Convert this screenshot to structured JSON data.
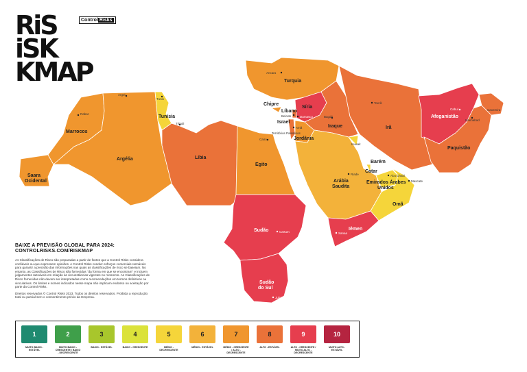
{
  "brand": {
    "logo_lines": [
      "RiS",
      "iSK",
      "KMAP"
    ],
    "badge_control": "Control",
    "badge_risks": "Risks"
  },
  "download": {
    "title_line1": "BAIXE A PREVISÃO GLOBAL PARA 2024:",
    "title_line2": "CONTROLRISKS.COM/RISKMAP"
  },
  "disclaimer": "As Classificações de Risco são preparadas a partir de fontes que a Control Risks considera confiáveis ou que expressem opiniões. A Control Risks conduz esforços comerciais razoáveis para garantir a precisão das informações nas quais as classificações de risco se baseiam. No entanto, as Classificações de Risco são fornecidas \"da forma em que se encontram\" e incluem julgamentos razoáveis em relação às circunstâncias vigentes no momento. As Classificações de Risco fornecidas não devem ser interpretadas como recomendações em termos definitivos ou vinculativos. Os limites e nomes indicados nesse mapa não implicam endosso ou aceitação por parte da Control Risks.",
  "rights": "Direitos reservados © Control Risks 2023. Todos os direitos reservados. Proibida a reprodução total ou parcial sem o consentimento prévio da Empresa.",
  "legend": [
    {
      "level": "1",
      "caption": "MUITO BAIXO - ESTÁVEL",
      "color": "#1f8a70",
      "dark": true
    },
    {
      "level": "2",
      "caption": "MUITO BAIXO - CRESCENTE / BAIXO - DECRESCENTE",
      "color": "#3f9f4a",
      "dark": true
    },
    {
      "level": "3",
      "caption": "BAIXO - ESTÁVEL",
      "color": "#a8c62c",
      "dark": false
    },
    {
      "level": "4",
      "caption": "BAIXO - CRESCENTE",
      "color": "#dbe23a",
      "dark": false
    },
    {
      "level": "5",
      "caption": "MÉDIO - DECRESCENTE",
      "color": "#f5d53a",
      "dark": false
    },
    {
      "level": "6",
      "caption": "MÉDIO - ESTÁVEL",
      "color": "#f3b23a",
      "dark": false
    },
    {
      "level": "7",
      "caption": "MÉDIO - CRESCENTE / ALTO - DECRESCENTE",
      "color": "#f0962e",
      "dark": false
    },
    {
      "level": "8",
      "caption": "ALTO - ESTÁVEL",
      "color": "#ea7239",
      "dark": false
    },
    {
      "level": "9",
      "caption": "ALTO - CRESCENTE / MUITO ALTO - DECRESCENTE",
      "color": "#e63e4e",
      "dark": true
    },
    {
      "level": "10",
      "caption": "MUITO ALTO - ESTÁVEL",
      "color": "#b52440",
      "dark": true
    }
  ],
  "countries": {
    "morocco": "Marrocos",
    "western_sahara_1": "Saara",
    "western_sahara_2": "Ocidental",
    "algeria": "Argélia",
    "tunisia": "Tunísia",
    "libya": "Líbia",
    "egypt": "Egito",
    "sudan": "Sudão",
    "south_sudan_1": "Sudão",
    "south_sudan_2": "do Sul",
    "turkey": "Turquia",
    "cyprus": "Chipre",
    "syria": "Síria",
    "lebanon": "Líbano",
    "israel": "Israel",
    "palestine": "Territórios Palestinos",
    "jordan": "Jordânia",
    "iraq": "Iraque",
    "iran": "Irã",
    "kuwait": "Kuwait",
    "bahrain": "Barém",
    "qatar": "Catar",
    "uae_1": "Emirados Árabes",
    "uae_2": "Unidos",
    "saudi_1": "Arábia",
    "saudi_2": "Saudita",
    "oman": "Omã",
    "yemen": "Iêmen",
    "afghanistan": "Afeganistão",
    "pakistan": "Paquistão",
    "kashmir": "Caxemira"
  },
  "cities": {
    "rabat": "Rabat",
    "algiers": "Argel",
    "tunis": "Tunis",
    "tripoli": "Trípoli",
    "cairo": "Cairo",
    "khartoum": "Cartum",
    "juba": "Juba",
    "ankara": "Ancara",
    "beirut": "Beirute",
    "damascus": "Damasco",
    "amman": "Amã",
    "baghdad": "Bagdá",
    "tehran": "Teerã",
    "riyadh": "Riade",
    "abu_dhabi": "Abu Dhabi",
    "muscat": "Mascate",
    "sanaa": "Sanaa",
    "kabul": "Cabul",
    "islamabad": "Islamabad"
  }
}
